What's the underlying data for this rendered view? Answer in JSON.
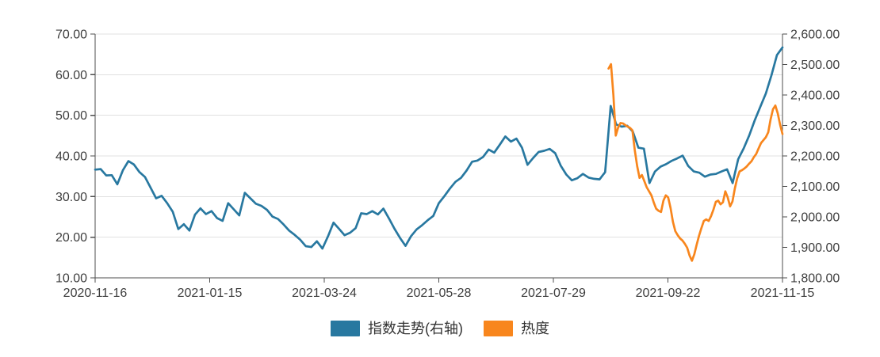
{
  "page": {
    "background": "#ffffff"
  },
  "chart_data": {
    "type": "line",
    "title": "",
    "grid": "horizontal",
    "legend_position": "bottom",
    "colors": {
      "gridline": "#e0e0e0",
      "axis": "#4d4d4d",
      "tick_label": "#3d3d3d",
      "legend_text": "#333333",
      "background": "#ffffff"
    },
    "x_axis": {
      "tick_labels": [
        "2020-11-16",
        "2021-01-15",
        "2021-03-24",
        "2021-05-28",
        "2021-07-29",
        "2021-09-22",
        "2021-11-15"
      ]
    },
    "left_axis": {
      "min": 10,
      "max": 70,
      "tick_step": 10,
      "tick_labels": [
        "70.00",
        "60.00",
        "50.00",
        "40.00",
        "30.00",
        "20.00",
        "10.00"
      ]
    },
    "right_axis": {
      "min": 1800,
      "max": 2600,
      "tick_step": 100,
      "tick_labels": [
        "2,600.00",
        "2,500.00",
        "2,400.00",
        "2,300.00",
        "2,200.00",
        "2,100.00",
        "2,000.00",
        "1,900.00",
        "1,800.00"
      ]
    },
    "series": [
      {
        "name": "指数走势(右轴)",
        "axis": "right",
        "color": "#2878a0",
        "x_start_frac": 0.0,
        "x_end_frac": 1.0,
        "values": [
          2155,
          2157,
          2136,
          2137,
          2107,
          2153,
          2183,
          2172,
          2147,
          2131,
          2096,
          2061,
          2069,
          2045,
          2017,
          1960,
          1976,
          1955,
          2007,
          2028,
          2009,
          2019,
          1996,
          1987,
          2045,
          2025,
          2005,
          2079,
          2061,
          2043,
          2036,
          2023,
          2001,
          1993,
          1975,
          1955,
          1941,
          1925,
          1904,
          1901,
          1920,
          1896,
          1936,
          1981,
          1961,
          1940,
          1948,
          1963,
          2012,
          2009,
          2019,
          2008,
          2027,
          1995,
          1961,
          1931,
          1905,
          1937,
          1959,
          1973,
          1989,
          2003,
          2045,
          2068,
          2093,
          2115,
          2128,
          2152,
          2181,
          2185,
          2197,
          2221,
          2211,
          2237,
          2264,
          2247,
          2257,
          2227,
          2171,
          2193,
          2213,
          2217,
          2223,
          2209,
          2168,
          2139,
          2120,
          2127,
          2141,
          2129,
          2125,
          2123,
          2147,
          2364,
          2303,
          2296,
          2299,
          2280,
          2227,
          2224,
          2111,
          2149,
          2165,
          2173,
          2184,
          2192,
          2201,
          2167,
          2149,
          2145,
          2132,
          2139,
          2141,
          2149,
          2156,
          2111,
          2189,
          2225,
          2267,
          2317,
          2361,
          2405,
          2464,
          2531,
          2556
        ]
      },
      {
        "name": "热度",
        "axis": "left",
        "color": "#f8861d",
        "x_start_frac": 0.747,
        "x_end_frac": 1.0,
        "values": [
          61.5,
          62.6,
          55.0,
          45.0,
          47.0,
          48.1,
          48.0,
          47.6,
          47.2,
          46.9,
          46.3,
          41.4,
          37.5,
          34.6,
          35.3,
          33.8,
          32.3,
          31.3,
          30.3,
          28.5,
          27.0,
          26.5,
          26.2,
          29.0,
          30.3,
          29.8,
          27.2,
          23.8,
          21.5,
          20.5,
          19.7,
          19.2,
          18.4,
          17.4,
          15.5,
          14.2,
          15.8,
          18.2,
          20.4,
          22.3,
          24.0,
          24.4,
          24.0,
          25.2,
          26.8,
          28.7,
          29.0,
          28.1,
          28.6,
          31.3,
          29.8,
          27.6,
          28.8,
          32.0,
          34.5,
          36.2,
          36.5,
          36.9,
          37.4,
          38.1,
          38.7,
          39.7,
          40.5,
          41.9,
          43.2,
          43.9,
          44.6,
          45.8,
          49.0,
          51.5,
          52.4,
          50.5,
          47.7,
          45.4
        ]
      }
    ]
  },
  "legend": {
    "items": [
      {
        "label": "指数走势(右轴)"
      },
      {
        "label": "热度"
      }
    ]
  }
}
